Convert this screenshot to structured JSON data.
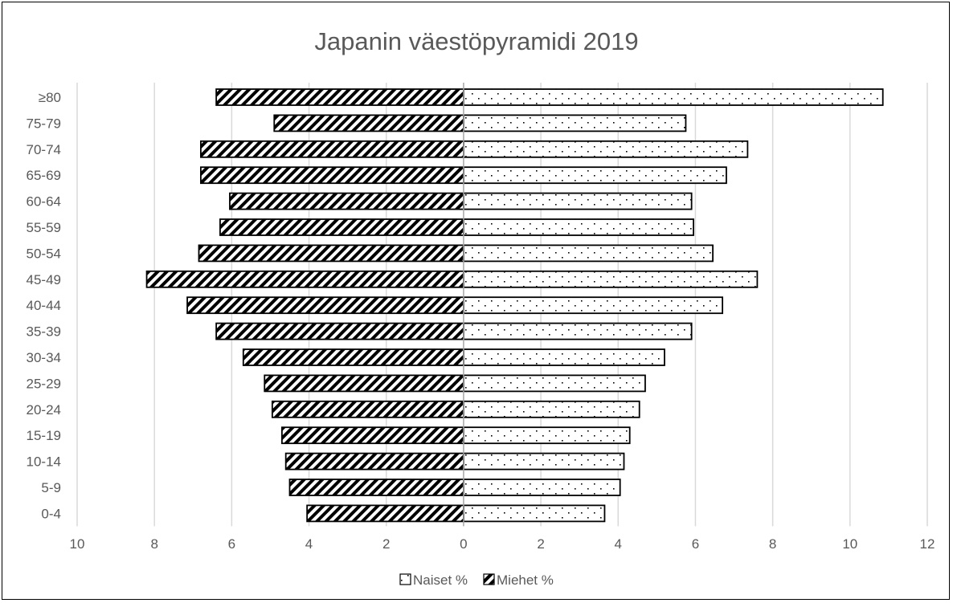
{
  "chart_data": {
    "type": "bar",
    "orientation": "horizontal",
    "title": "Japanin väestöpyramidi 2019",
    "categories": [
      "0-4",
      "5-9",
      "10-14",
      "15-19",
      "20-24",
      "25-29",
      "30-34",
      "35-39",
      "40-44",
      "45-49",
      "50-54",
      "55-59",
      "60-64",
      "65-69",
      "70-74",
      "75-79",
      "≥80"
    ],
    "series": [
      {
        "name": "Naiset %",
        "side": "right",
        "pattern": "dots",
        "values": [
          3.65,
          4.05,
          4.15,
          4.3,
          4.55,
          4.7,
          5.2,
          5.9,
          6.7,
          7.6,
          6.45,
          5.95,
          5.9,
          6.8,
          7.35,
          5.75,
          10.85
        ]
      },
      {
        "name": "Miehet %",
        "side": "left",
        "pattern": "diagonal-hatch",
        "values": [
          4.05,
          4.5,
          4.6,
          4.7,
          4.95,
          5.15,
          5.7,
          6.4,
          7.15,
          8.2,
          6.85,
          6.3,
          6.05,
          6.8,
          6.8,
          4.9,
          6.4
        ]
      }
    ],
    "x_ticks": [
      "10",
      "8",
      "6",
      "4",
      "2",
      "0",
      "2",
      "4",
      "6",
      "8",
      "10",
      "12"
    ],
    "xlim": [
      -10,
      12
    ],
    "grid": "vertical",
    "legend_position": "bottom",
    "colors": {
      "bar_fill": "#ffffff",
      "bar_edge": "#000000",
      "grid": "#d9d9d9",
      "text": "#595959"
    }
  }
}
